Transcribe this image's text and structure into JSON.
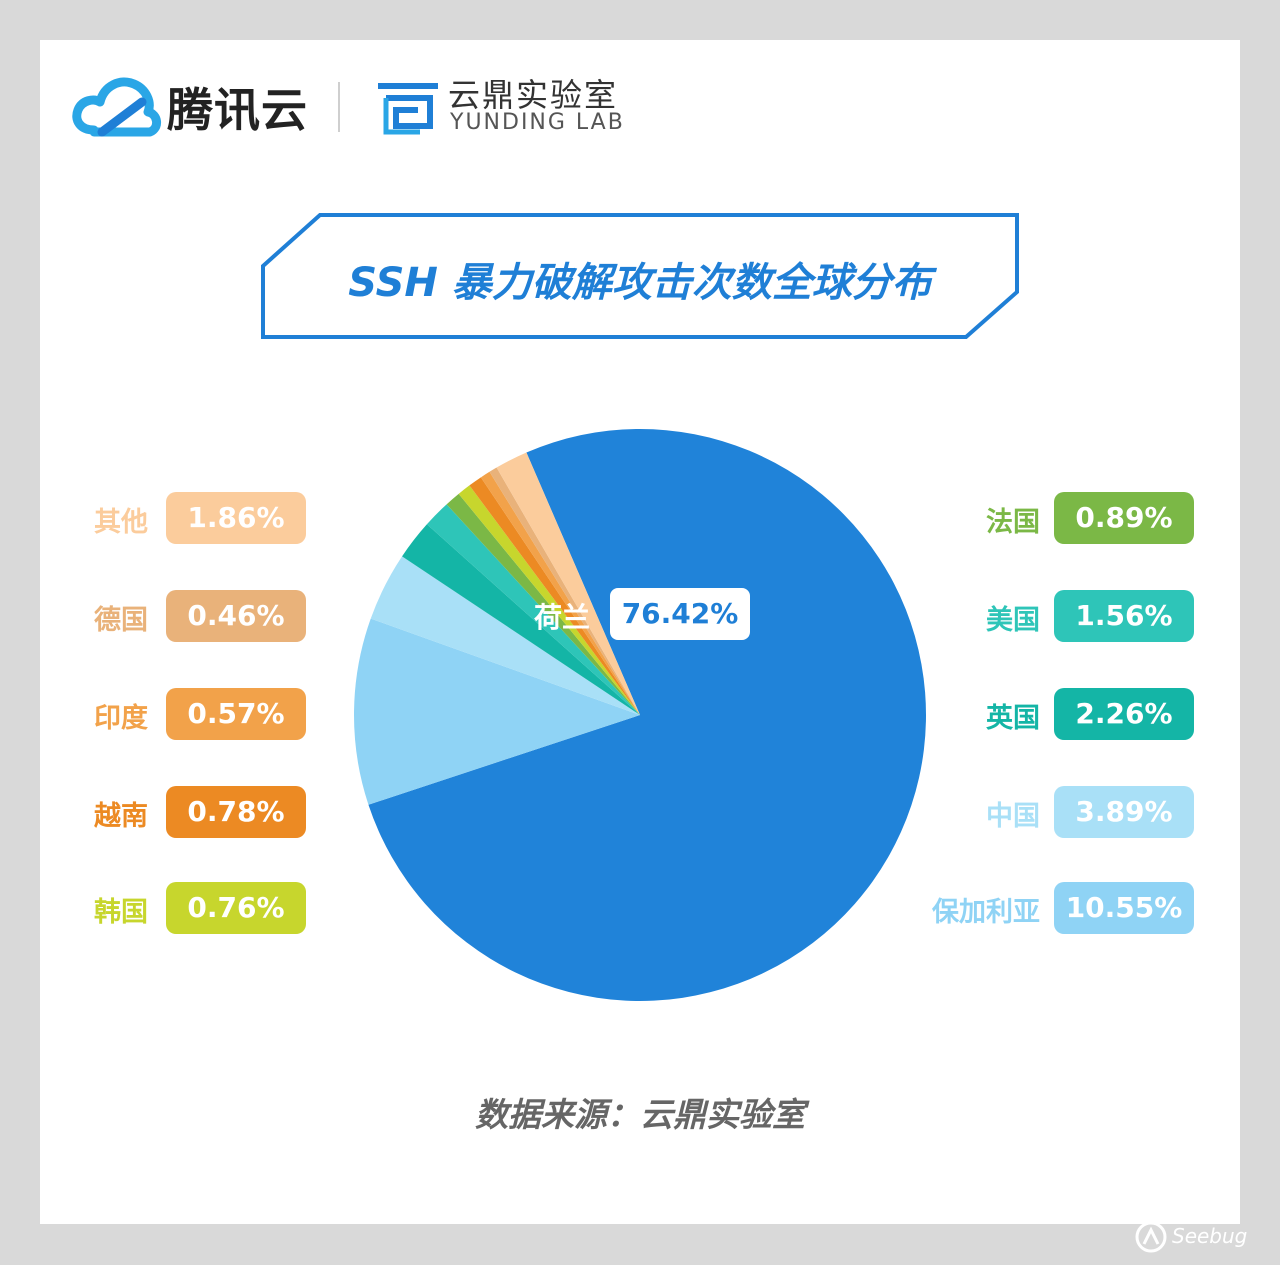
{
  "header": {
    "brand_main": "腾讯云",
    "brand_lab_cn": "云鼎实验室",
    "brand_lab_en": "YUNDING LAB"
  },
  "chart_data": {
    "type": "pie",
    "title": "SSH 暴力破解攻击次数全球分布",
    "slices": [
      {
        "name": "荷兰",
        "value": 76.42,
        "label": "76.42%",
        "color": "#2083d9"
      },
      {
        "name": "保加利亚",
        "value": 10.55,
        "label": "10.55%",
        "color": "#8fd3f5"
      },
      {
        "name": "中国",
        "value": 3.89,
        "label": "3.89%",
        "color": "#a9e0f7"
      },
      {
        "name": "英国",
        "value": 2.26,
        "label": "2.26%",
        "color": "#14b5a6"
      },
      {
        "name": "美国",
        "value": 1.56,
        "label": "1.56%",
        "color": "#2ec5b8"
      },
      {
        "name": "法国",
        "value": 0.89,
        "label": "0.89%",
        "color": "#7bb846"
      },
      {
        "name": "韩国",
        "value": 0.76,
        "label": "0.76%",
        "color": "#c7d62d"
      },
      {
        "name": "越南",
        "value": 0.78,
        "label": "0.78%",
        "color": "#ec8a23"
      },
      {
        "name": "印度",
        "value": 0.57,
        "label": "0.57%",
        "color": "#f2a24a"
      },
      {
        "name": "德国",
        "value": 0.46,
        "label": "0.46%",
        "color": "#e9b27a"
      },
      {
        "name": "其他",
        "value": 1.86,
        "label": "1.86%",
        "color": "#fbcc9c"
      }
    ],
    "legend_left": [
      "其他",
      "德国",
      "印度",
      "越南",
      "韩国"
    ],
    "legend_right": [
      "法国",
      "美国",
      "英国",
      "中国",
      "保加利亚"
    ]
  },
  "footer": {
    "source": "数据来源：云鼎实验室"
  },
  "watermark": "Seebug",
  "colors": {
    "accent": "#1f7fd6",
    "background": "#d9d9d9",
    "card": "#ffffff"
  }
}
